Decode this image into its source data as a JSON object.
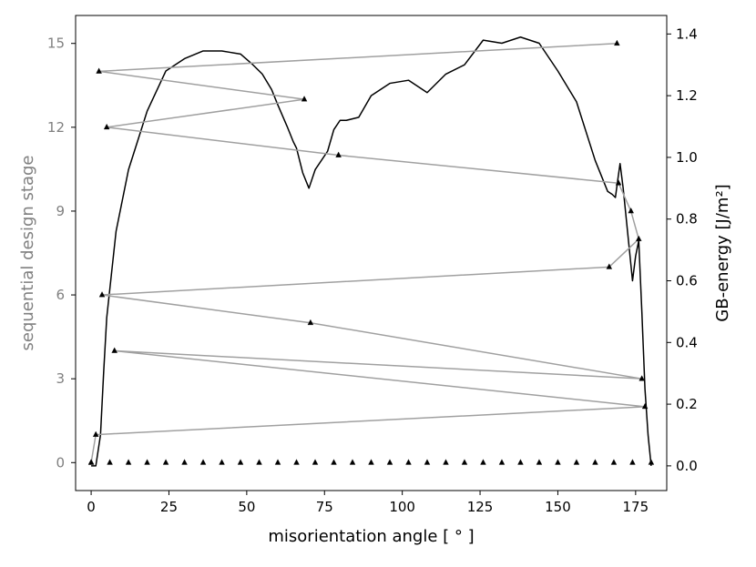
{
  "chart_data": {
    "type": "line",
    "xlabel": "misorientation angle [$^\\circ$]",
    "xlabel_display": "misorientation angle [ ° ]",
    "xlim": [
      -5,
      185
    ],
    "xticks": [
      0,
      25,
      50,
      75,
      100,
      125,
      150,
      175
    ],
    "y_left": {
      "label": "sequential design stage",
      "lim": [
        -1,
        16
      ],
      "ticks": [
        0,
        3,
        6,
        9,
        12,
        15
      ],
      "color": "#808080"
    },
    "y_right": {
      "label": "GB-energy [J/m²]",
      "lim": [
        -0.08,
        1.46
      ],
      "ticks": [
        0.0,
        0.2,
        0.4,
        0.6,
        0.8,
        1.0,
        1.2,
        1.4
      ],
      "tick_labels": [
        "0.0",
        "0.2",
        "0.4",
        "0.6",
        "0.8",
        "1.0",
        "1.2",
        "1.4"
      ],
      "color": "#000000"
    },
    "series": [
      {
        "axis": "right",
        "color": "#000000",
        "marker": "none",
        "x": [
          0,
          1.5,
          3,
          4,
          5,
          8,
          12,
          18,
          24,
          30,
          36,
          42,
          45,
          48,
          52,
          55,
          58,
          60,
          63,
          65,
          66,
          68,
          70,
          72,
          76,
          78,
          80,
          82,
          86,
          90,
          96,
          102,
          108,
          114,
          120,
          126,
          132,
          138,
          144,
          150,
          156,
          162,
          166,
          167.5,
          168.5,
          169.3,
          170,
          171,
          172,
          173,
          174,
          175,
          176,
          177,
          178,
          179,
          180
        ],
        "y": [
          0.0,
          0.0,
          0.1,
          0.3,
          0.48,
          0.76,
          0.96,
          1.15,
          1.28,
          1.32,
          1.345,
          1.345,
          1.34,
          1.335,
          1.3,
          1.27,
          1.22,
          1.17,
          1.1,
          1.05,
          1.03,
          0.95,
          0.9,
          0.96,
          1.02,
          1.09,
          1.12,
          1.12,
          1.13,
          1.2,
          1.24,
          1.25,
          1.21,
          1.27,
          1.3,
          1.38,
          1.37,
          1.39,
          1.37,
          1.28,
          1.18,
          0.99,
          0.89,
          0.88,
          0.87,
          0.93,
          0.98,
          0.9,
          0.8,
          0.7,
          0.6,
          0.68,
          0.73,
          0.5,
          0.25,
          0.1,
          0.0
        ]
      },
      {
        "axis": "left",
        "color": "#a0a0a0",
        "marker": "triangle",
        "x": [
          0,
          1.5,
          178,
          7.5,
          177,
          70.5,
          3.5,
          166.5,
          176,
          173.5,
          169.5,
          79.5,
          5,
          68.5,
          2.5,
          169
        ],
        "y": [
          0,
          1,
          2,
          4,
          3,
          5,
          6,
          7,
          8,
          9,
          10,
          11,
          12,
          13,
          14,
          15
        ]
      },
      {
        "axis": "left",
        "color": "#000000",
        "marker": "triangle",
        "line": false,
        "x": [
          0,
          6,
          12,
          18,
          24,
          30,
          36,
          42,
          48,
          54,
          60,
          66,
          72,
          78,
          84,
          90,
          96,
          102,
          108,
          114,
          120,
          126,
          132,
          138,
          144,
          150,
          156,
          162,
          168,
          174,
          180
        ],
        "y": [
          0,
          0,
          0,
          0,
          0,
          0,
          0,
          0,
          0,
          0,
          0,
          0,
          0,
          0,
          0,
          0,
          0,
          0,
          0,
          0,
          0,
          0,
          0,
          0,
          0,
          0,
          0,
          0,
          0,
          0,
          0
        ]
      }
    ],
    "grid": false,
    "legend": "none"
  }
}
